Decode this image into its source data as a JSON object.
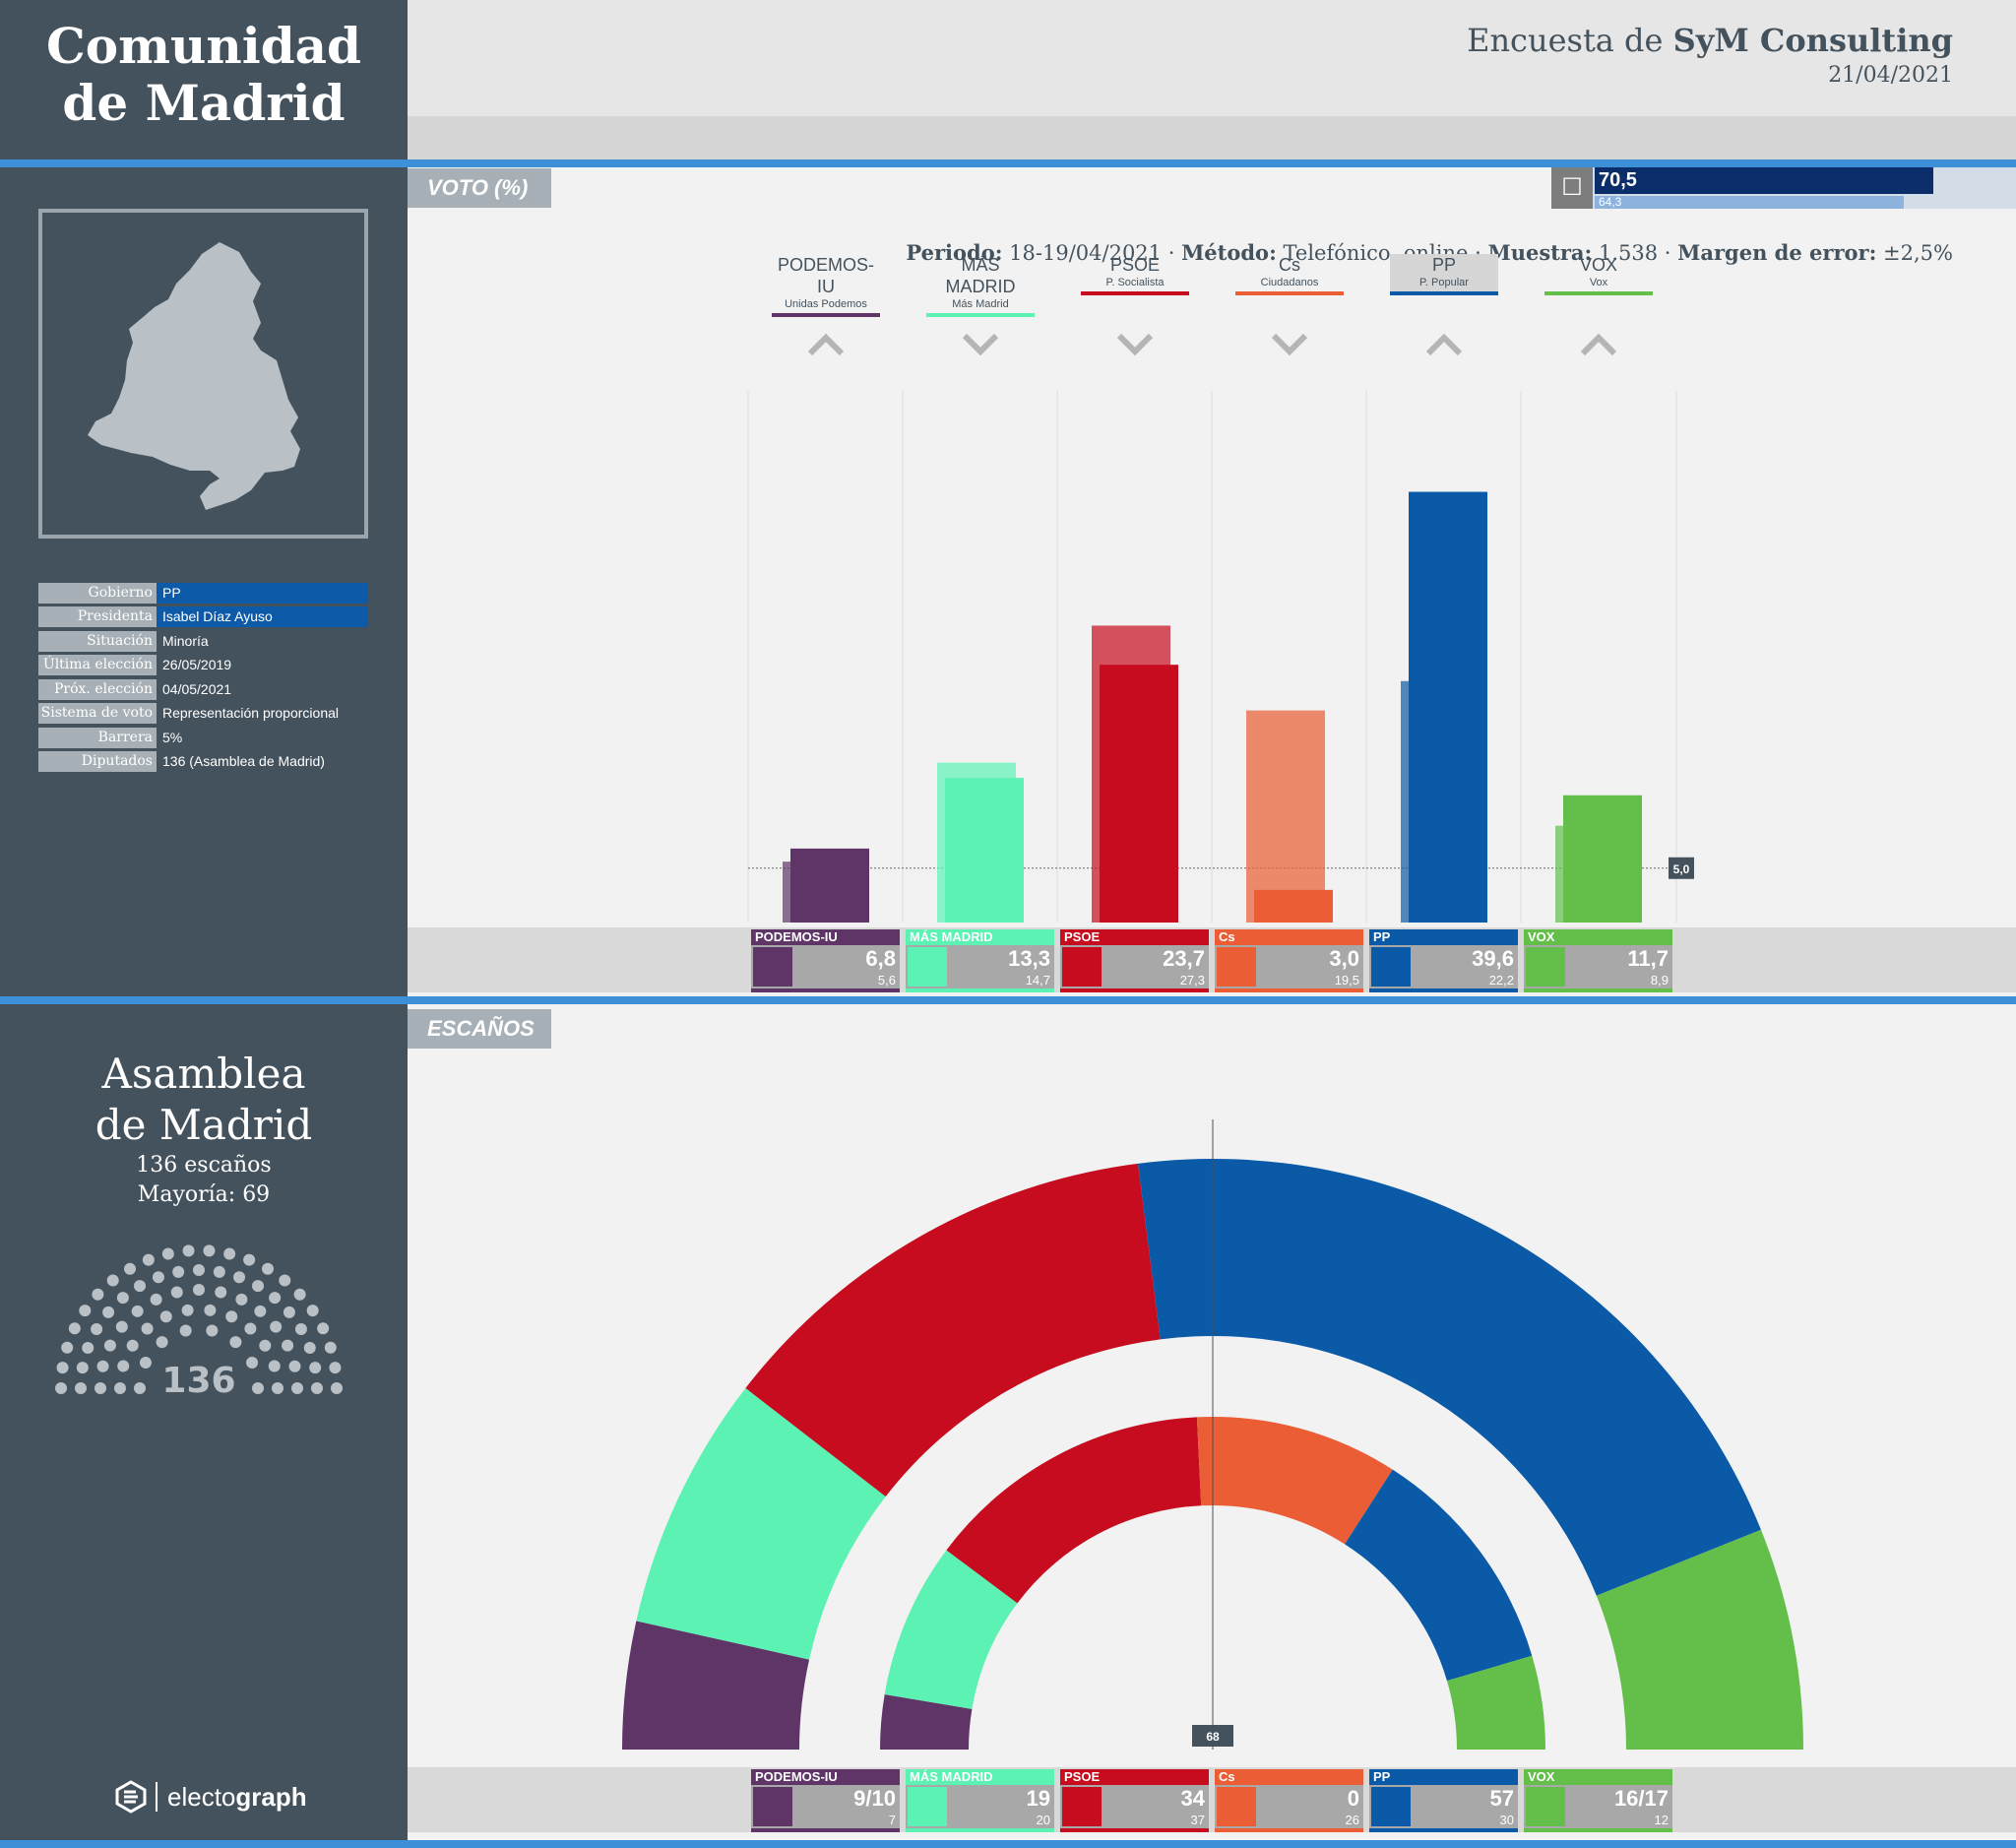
{
  "region": {
    "title_line1": "Comunidad",
    "title_line2": "de Madrid"
  },
  "poll": {
    "title_prefix": "Encuesta de",
    "pollster": "SyM Consulting",
    "date": "21/04/2021",
    "periodo_label": "Periodo:",
    "periodo": "18-19/04/2021",
    "metodo_label": "Método:",
    "metodo": "Telefónico, online",
    "muestra_label": "Muestra:",
    "muestra": "1.538",
    "margen_label": "Margen de error:",
    "margen": "±2,5%"
  },
  "info": [
    {
      "label": "Gobierno",
      "value": "PP"
    },
    {
      "label": "Presidenta",
      "value": "Isabel Díaz Ayuso"
    },
    {
      "label": "Situación",
      "value": "Minoría"
    },
    {
      "label": "Última elección",
      "value": "26/05/2019"
    },
    {
      "label": "Próx. elección",
      "value": "04/05/2021"
    },
    {
      "label": "Sistema de voto",
      "value": "Representación proporcional"
    },
    {
      "label": "Barrera",
      "value": "5%"
    },
    {
      "label": "Diputados",
      "value": "136 (Asamblea de Madrid)"
    }
  ],
  "asamblea": {
    "line1": "Asamblea",
    "line2": "de Madrid",
    "seats_text": "136 escaños",
    "majority_text": "Mayoría: 69",
    "total": "136"
  },
  "brand": {
    "name_plain": "electo",
    "name_bold": "graph"
  },
  "sections": {
    "vote": "VOTO (%)",
    "seats": "ESCAÑOS"
  },
  "turnout": {
    "current": "70,5",
    "previous": "64,3",
    "current_value": 70.5,
    "previous_value": 64.3
  },
  "colors": {
    "podemos": "#5f3568",
    "masmadrid": "#5cf2b4",
    "psoe": "#c60c1e",
    "cs": "#ea5d35",
    "pp": "#0b5aa8",
    "vox": "#63bf4a"
  },
  "chart_data": [
    {
      "type": "bar",
      "title": "VOTO (%)",
      "categories": [
        "PODEMOS-IU",
        "MÁS MADRID",
        "PSOE",
        "Cs",
        "PP",
        "VOX"
      ],
      "subtitles": [
        "Unidas Podemos",
        "Más Madrid",
        "P. Socialista",
        "Ciudadanos",
        "P. Popular",
        "Vox"
      ],
      "trend": [
        "up",
        "down",
        "down",
        "down",
        "up",
        "up"
      ],
      "series": [
        {
          "name": "",
          "values": [
            6.8,
            13.3,
            23.7,
            3.0,
            39.6,
            11.7
          ]
        },
        {
          "name": "",
          "values": [
            5.6,
            14.7,
            27.3,
            19.5,
            22.2,
            8.9
          ]
        }
      ],
      "value_labels": [
        "6,8",
        "13,3",
        "23,7",
        "3,0",
        "39,6",
        "11,7"
      ],
      "prev_labels": [
        "5,6",
        "14,7",
        "27,3",
        "19,5",
        "22,2",
        "8,9"
      ],
      "threshold": 5.0,
      "threshold_label": "5,0",
      "ylim": [
        0,
        43
      ]
    },
    {
      "type": "pie",
      "title": "ESCAÑOS",
      "categories": [
        "PODEMOS-IU",
        "MÁS MADRID",
        "PSOE",
        "Cs",
        "PP",
        "VOX"
      ],
      "series": [
        {
          "name": "",
          "values": [
            9.5,
            19,
            34,
            0,
            57,
            16.5
          ]
        },
        {
          "name": "",
          "values": [
            7,
            20,
            37,
            26,
            30,
            12
          ]
        }
      ],
      "seat_labels": [
        "9/10",
        "19",
        "34",
        "0",
        "57",
        "16/17"
      ],
      "prev_labels": [
        "7",
        "20",
        "37",
        "26",
        "30",
        "12"
      ],
      "majority_marker": "68"
    }
  ]
}
